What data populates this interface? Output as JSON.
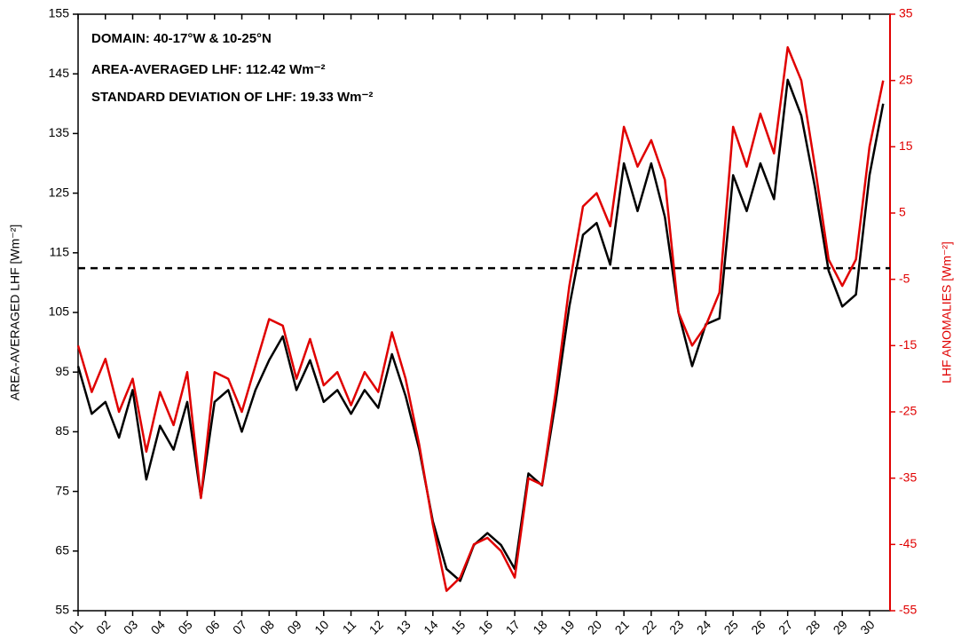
{
  "chart_data": {
    "type": "line",
    "annotations": [
      "DOMAIN: 40-17°W & 10-25°N",
      "AREA-AVERAGED LHF: 112.42 Wm⁻²",
      "STANDARD DEVIATION OF LHF: 19.33 Wm⁻²"
    ],
    "ylabel": "AREA-AVERAGED LHF [Wm⁻²]",
    "y2label": "LHF ANOMALIES [Wm⁻²]",
    "x": [
      1,
      1.5,
      2,
      2.5,
      3,
      3.5,
      4,
      4.5,
      5,
      5.5,
      6,
      6.5,
      7,
      7.5,
      8,
      8.5,
      9,
      9.5,
      10,
      10.5,
      11,
      11.5,
      12,
      12.5,
      13,
      13.5,
      14,
      14.5,
      15,
      15.5,
      16,
      16.5,
      17,
      17.5,
      18,
      18.5,
      19,
      19.5,
      20,
      20.5,
      21,
      21.5,
      22,
      22.5,
      23,
      23.5,
      24,
      24.5,
      25,
      25.5,
      26,
      26.5,
      27,
      27.5,
      28,
      28.5,
      29,
      29.5,
      30,
      30.5
    ],
    "series": [
      {
        "name": "LHF",
        "color": "#000000",
        "axis": "y",
        "values": [
          96,
          88,
          90,
          84,
          92,
          77,
          86,
          82,
          90,
          74,
          90,
          92,
          85,
          92,
          97,
          101,
          92,
          97,
          90,
          92,
          88,
          92,
          89,
          98,
          91,
          82,
          70,
          62,
          60,
          66,
          68,
          66,
          62,
          78,
          76,
          90,
          106,
          118,
          120,
          113,
          130,
          122,
          130,
          121,
          105,
          96,
          103,
          104,
          128,
          122,
          130,
          124,
          144,
          138,
          126,
          112,
          106,
          108,
          128,
          140
        ]
      },
      {
        "name": "LHF anomalies",
        "color": "#e00000",
        "axis": "y2",
        "values": [
          -15,
          -22,
          -17,
          -25,
          -20,
          -31,
          -22,
          -27,
          -19,
          -38,
          -19,
          -20,
          -25,
          -18,
          -11,
          -12,
          -20,
          -14,
          -21,
          -19,
          -24,
          -19,
          -22,
          -13,
          -20,
          -30,
          -42,
          -52,
          -50,
          -45,
          -44,
          -46,
          -50,
          -35,
          -36,
          -22,
          -6,
          6,
          8,
          3,
          18,
          12,
          16,
          10,
          -10,
          -15,
          -12,
          -7,
          18,
          12,
          20,
          14,
          30,
          25,
          12,
          -2,
          -6,
          -2,
          15,
          25
        ]
      }
    ],
    "hline": 112.42,
    "xlim": [
      1,
      30.75
    ],
    "xticks": [
      {
        "value": 1,
        "label": "01"
      },
      {
        "value": 2,
        "label": "02"
      },
      {
        "value": 3,
        "label": "03"
      },
      {
        "value": 4,
        "label": "04"
      },
      {
        "value": 5,
        "label": "05"
      },
      {
        "value": 6,
        "label": "06"
      },
      {
        "value": 7,
        "label": "07"
      },
      {
        "value": 8,
        "label": "08"
      },
      {
        "value": 9,
        "label": "09"
      },
      10,
      11,
      12,
      13,
      14,
      15,
      16,
      17,
      18,
      19,
      20,
      21,
      22,
      23,
      24,
      25,
      26,
      27,
      28,
      29,
      30
    ],
    "ylim": [
      55,
      155
    ],
    "yticks": [
      55,
      65,
      75,
      85,
      95,
      105,
      115,
      125,
      135,
      145,
      155
    ],
    "y2lim": [
      -55,
      35
    ],
    "y2ticks": [
      -55,
      -45,
      -35,
      -25,
      -15,
      -5,
      5,
      15,
      25,
      35
    ],
    "y2color": "#e00000"
  }
}
